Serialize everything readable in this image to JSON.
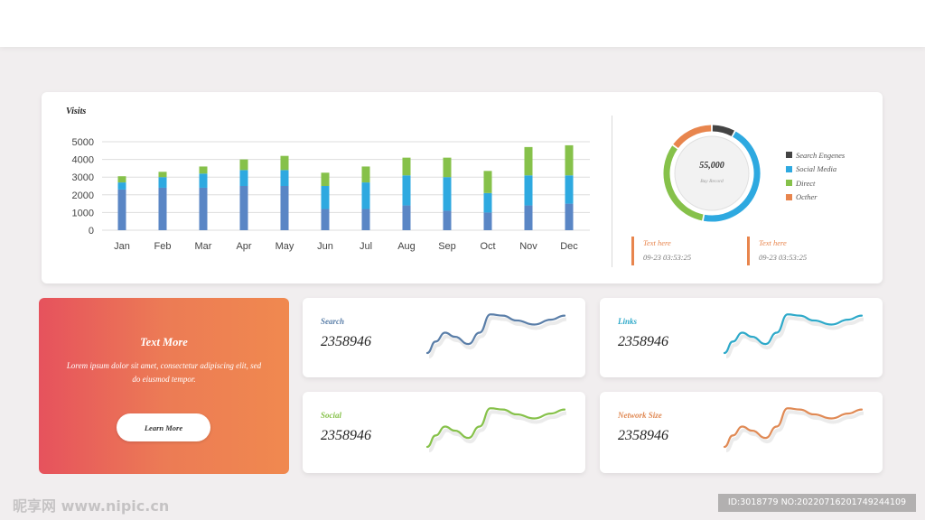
{
  "colors": {
    "dark_blue": "#5a86c5",
    "light_blue": "#2ea9e0",
    "green": "#86c14a",
    "orange": "#e8854d",
    "dark_gray": "#444444",
    "gradient_start": "#e6525d",
    "gradient_end": "#f0894f"
  },
  "chart_data": [
    {
      "type": "bar",
      "stacked": true,
      "title": "Visits",
      "categories": [
        "Jan",
        "Feb",
        "Mar",
        "Apr",
        "May",
        "Jun",
        "Jul",
        "Aug",
        "Sep",
        "Oct",
        "Nov",
        "Dec"
      ],
      "series": [
        {
          "values": [
            2300,
            2400,
            2400,
            2500,
            2500,
            1200,
            1200,
            1400,
            1100,
            1000,
            1400,
            1500
          ],
          "color": "#5a86c5"
        },
        {
          "values": [
            400,
            600,
            800,
            900,
            900,
            1300,
            1500,
            1700,
            1900,
            1100,
            1700,
            1600
          ],
          "color": "#2ea9e0"
        },
        {
          "values": [
            350,
            300,
            400,
            600,
            800,
            750,
            900,
            1000,
            1100,
            1250,
            1600,
            1700
          ],
          "color": "#86c14a"
        }
      ],
      "ylim": [
        0,
        5000
      ],
      "yticks": [
        0,
        1000,
        2000,
        3000,
        4000,
        5000
      ],
      "grid": true
    },
    {
      "type": "pie",
      "donut": true,
      "center_value": "55,000",
      "center_label": "Buy Record",
      "series": [
        {
          "name": "Search Engenes",
          "value": 8,
          "color": "#444444"
        },
        {
          "name": "Social Media",
          "value": 45,
          "color": "#2ea9e0"
        },
        {
          "name": "Direct",
          "value": 32,
          "color": "#86c14a"
        },
        {
          "name": "Octher",
          "value": 15,
          "color": "#e8854d"
        }
      ],
      "legend": "right"
    }
  ],
  "records": [
    {
      "title": "Text here",
      "time": "09-23  03:53:25"
    },
    {
      "title": "Text here",
      "time": "09-23  03:53:25"
    }
  ],
  "promo": {
    "title": "Text More",
    "text": "Lorem ipsum dolor sit amet, consectetur adipiscing elit, sed do eiusmod tempor.",
    "button": "Learn More"
  },
  "stats": [
    {
      "label": "Search",
      "value": "2358946",
      "color": "#5a7ea8"
    },
    {
      "label": "Links",
      "value": "2358946",
      "color": "#2ea9c9"
    },
    {
      "label": "Social",
      "value": "2358946",
      "color": "#86c14a"
    },
    {
      "label": "Network Size",
      "value": "2358946",
      "color": "#e08a55"
    }
  ],
  "watermark": {
    "left": "昵享网 www.nipic.cn",
    "right": "ID:3018779 NO:20220716201749244109"
  }
}
